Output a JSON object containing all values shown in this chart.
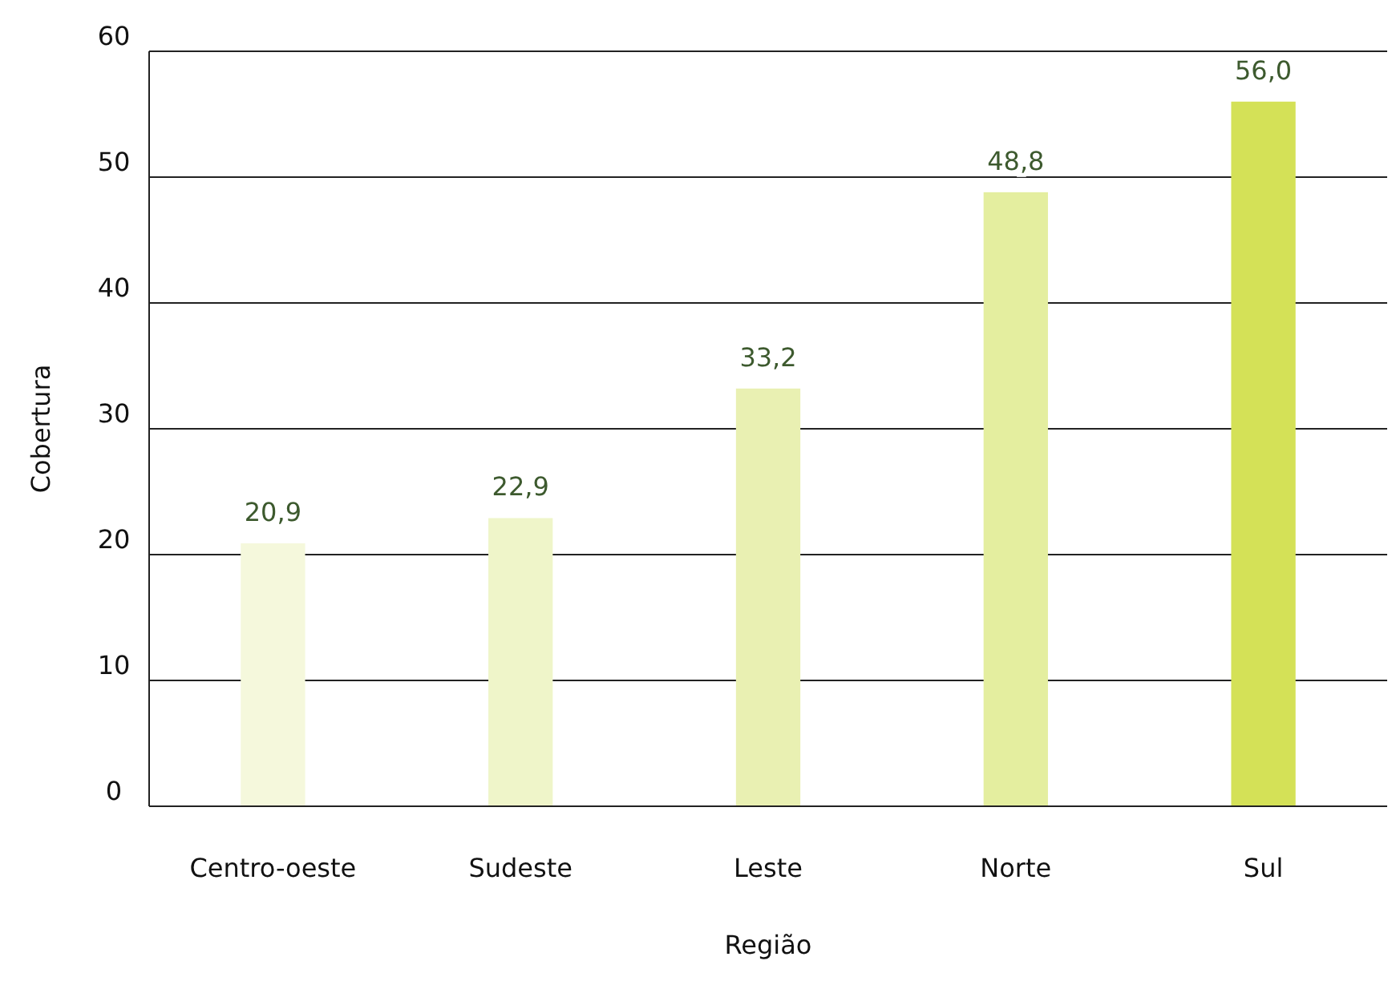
{
  "chart_data": {
    "type": "bar",
    "xlabel": "Região",
    "ylabel": "Cobertura",
    "categories": [
      "Centro-oeste",
      "Sudeste",
      "Leste",
      "Norte",
      "Sul"
    ],
    "values": [
      20.9,
      22.9,
      33.2,
      48.8,
      56.0
    ],
    "colors": [
      "#f5f8dc",
      "#eff5c9",
      "#e9f0b2",
      "#e4ee9f",
      "#d4e157"
    ],
    "value_labels": [
      "20,9",
      "22,9",
      "33,2",
      "48,8",
      "56,0"
    ],
    "ylim": [
      0,
      60
    ],
    "yticks": [
      0,
      10,
      20,
      30,
      40,
      50,
      60
    ],
    "grid": "y"
  }
}
